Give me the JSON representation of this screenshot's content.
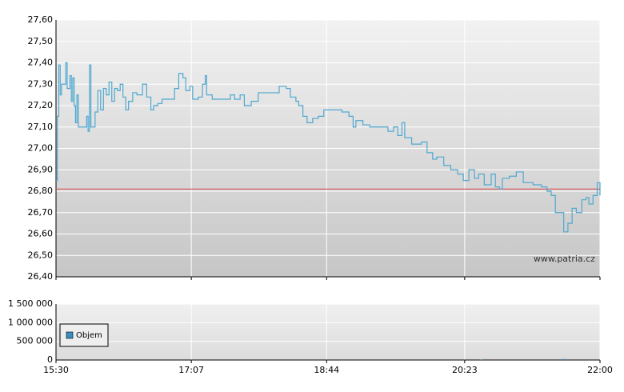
{
  "chart_data": [
    {
      "type": "line",
      "xlim": [
        "15:30",
        "22:00"
      ],
      "x": [
        "15:30",
        "15:31",
        "15:32",
        "15:33",
        "15:34",
        "15:36",
        "15:37",
        "15:38",
        "15:40",
        "15:41",
        "15:42",
        "15:43",
        "15:44",
        "15:45",
        "15:46",
        "15:50",
        "15:52",
        "15:53",
        "15:54",
        "15:55",
        "15:58",
        "16:00",
        "16:02",
        "16:04",
        "16:06",
        "16:08",
        "16:10",
        "16:12",
        "16:14",
        "16:16",
        "16:18",
        "16:20",
        "16:22",
        "16:25",
        "16:28",
        "16:32",
        "16:35",
        "16:38",
        "16:40",
        "16:43",
        "16:46",
        "16:50",
        "16:55",
        "16:58",
        "17:01",
        "17:03",
        "17:06",
        "17:08",
        "17:12",
        "17:15",
        "17:17",
        "17:18",
        "17:22",
        "17:30",
        "17:35",
        "17:38",
        "17:42",
        "17:45",
        "17:50",
        "17:55",
        "18:00",
        "18:05",
        "18:10",
        "18:15",
        "18:18",
        "18:22",
        "18:24",
        "18:27",
        "18:30",
        "18:34",
        "18:38",
        "18:42",
        "18:48",
        "18:55",
        "19:00",
        "19:03",
        "19:05",
        "19:10",
        "19:15",
        "19:22",
        "19:28",
        "19:32",
        "19:35",
        "19:38",
        "19:40",
        "19:45",
        "19:52",
        "19:56",
        "20:00",
        "20:03",
        "20:08",
        "20:13",
        "20:18",
        "20:22",
        "20:26",
        "20:30",
        "20:33",
        "20:37",
        "20:42",
        "20:45",
        "20:48",
        "20:50",
        "20:55",
        "21:00",
        "21:05",
        "21:12",
        "21:18",
        "21:22",
        "21:25",
        "21:28",
        "21:32",
        "21:34",
        "21:37",
        "21:40",
        "21:43",
        "21:47",
        "21:50",
        "21:52",
        "21:55",
        "21:58",
        "22:00"
      ],
      "values": [
        26.85,
        27.15,
        27.39,
        27.25,
        27.3,
        27.3,
        27.4,
        27.28,
        27.34,
        27.22,
        27.33,
        27.2,
        27.12,
        27.25,
        27.1,
        27.1,
        27.15,
        27.08,
        27.39,
        27.1,
        27.17,
        27.27,
        27.18,
        27.28,
        27.25,
        27.31,
        27.22,
        27.28,
        27.27,
        27.3,
        27.24,
        27.18,
        27.22,
        27.26,
        27.25,
        27.3,
        27.24,
        27.18,
        27.2,
        27.21,
        27.23,
        27.23,
        27.28,
        27.35,
        27.33,
        27.27,
        27.29,
        27.23,
        27.24,
        27.3,
        27.34,
        27.25,
        27.23,
        27.23,
        27.25,
        27.23,
        27.25,
        27.2,
        27.22,
        27.26,
        27.26,
        27.26,
        27.29,
        27.28,
        27.24,
        27.22,
        27.2,
        27.15,
        27.12,
        27.14,
        27.15,
        27.18,
        27.18,
        27.17,
        27.15,
        27.1,
        27.13,
        27.11,
        27.1,
        27.1,
        27.08,
        27.1,
        27.06,
        27.12,
        27.05,
        27.02,
        27.03,
        26.98,
        26.95,
        26.96,
        26.92,
        26.9,
        26.88,
        26.85,
        26.9,
        26.86,
        26.88,
        26.83,
        26.88,
        26.82,
        26.81,
        26.86,
        26.87,
        26.89,
        26.84,
        26.83,
        26.82,
        26.8,
        26.78,
        26.7,
        26.7,
        26.61,
        26.65,
        26.72,
        26.7,
        26.76,
        26.77,
        26.74,
        26.78,
        26.84,
        26.78
      ],
      "color": "#4fa8d0",
      "reference_line": 26.81,
      "reference_color": "#d05050",
      "ylim": [
        26.4,
        27.6
      ],
      "yticks": [
        {
          "value": 26.4,
          "label": "26,40"
        },
        {
          "value": 26.5,
          "label": "26,50"
        },
        {
          "value": 26.6,
          "label": "26,60"
        },
        {
          "value": 26.7,
          "label": "26,70"
        },
        {
          "value": 26.8,
          "label": "26,80"
        },
        {
          "value": 26.9,
          "label": "26,90"
        },
        {
          "value": 27.0,
          "label": "27,00"
        },
        {
          "value": 27.1,
          "label": "27,10"
        },
        {
          "value": 27.2,
          "label": "27,20"
        },
        {
          "value": 27.3,
          "label": "27,30"
        },
        {
          "value": 27.4,
          "label": "27,40"
        },
        {
          "value": 27.5,
          "label": "27,50"
        },
        {
          "value": 27.6,
          "label": "27,60"
        }
      ],
      "watermark": "www.patria.cz",
      "grid": true
    },
    {
      "type": "bar",
      "xlim": [
        "15:30",
        "22:00"
      ],
      "xticks": [
        "15:30",
        "17:07",
        "18:44",
        "20:23",
        "22:00"
      ],
      "x": [
        "20:35",
        "21:34"
      ],
      "series": [
        {
          "name": "Objem",
          "color": "#3a8fc0",
          "values": [
            15000,
            30000
          ]
        }
      ],
      "ylim": [
        0,
        1500000
      ],
      "yticks": [
        0,
        {
          "value": 500000,
          "label": "500 000"
        },
        {
          "value": 1000000,
          "label": "1 000 000"
        },
        {
          "value": 1500000,
          "label": "1 500 000"
        }
      ],
      "legend": "lower-left",
      "grid": true
    }
  ]
}
